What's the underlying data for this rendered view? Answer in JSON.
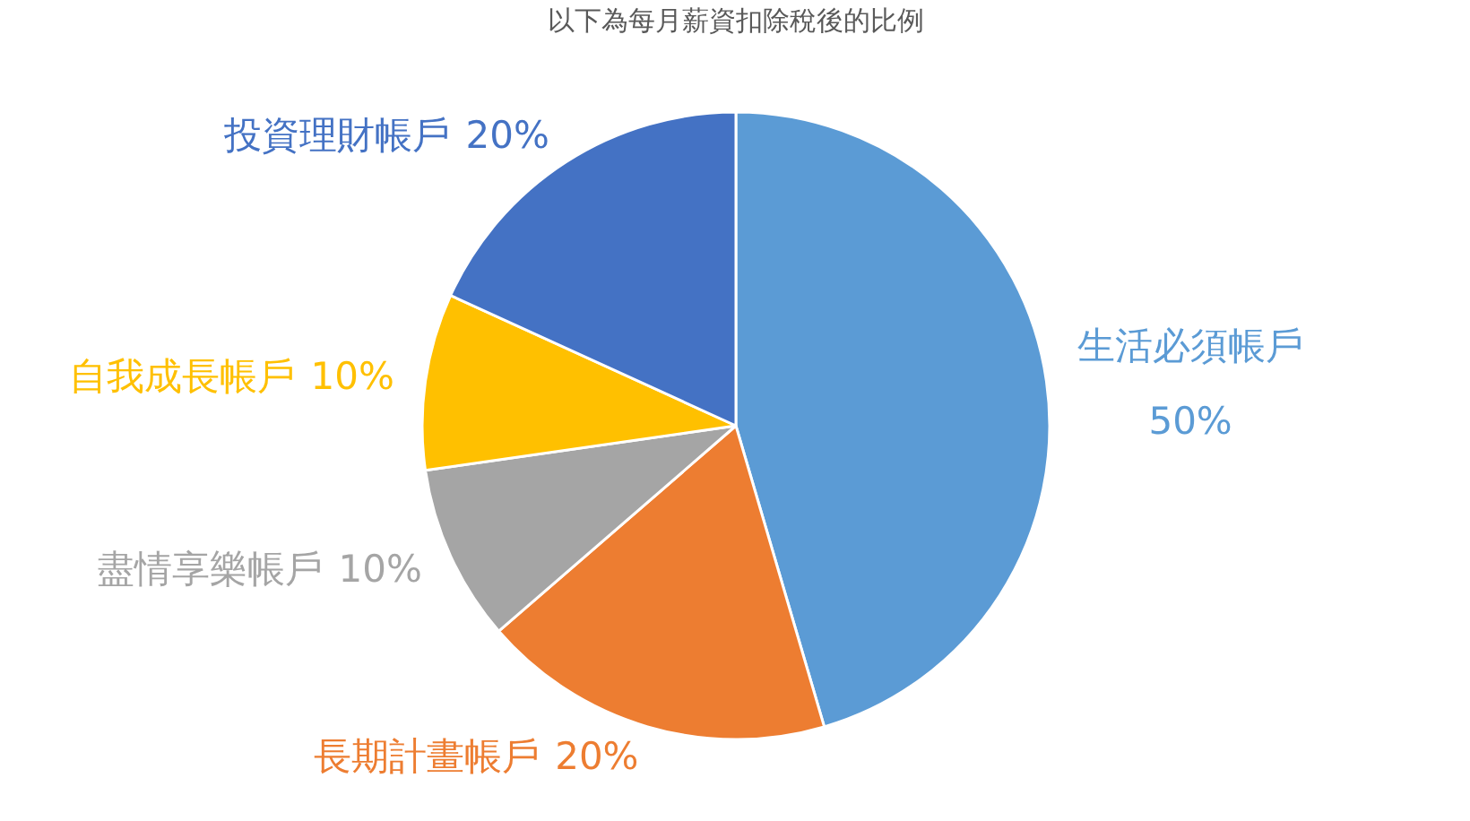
{
  "chart_data": {
    "type": "pie",
    "title": "以下為每月薪資扣除稅後的比例",
    "categories": [
      "生活必須帳戶",
      "長期計畫帳戶",
      "盡情享樂帳戶",
      "自我成長帳戶",
      "投資理財帳戶"
    ],
    "values": [
      50,
      20,
      10,
      10,
      20
    ],
    "value_labels": [
      "50%",
      "20%",
      "10%",
      "10%",
      "20%"
    ],
    "colors": [
      "#5b9bd5",
      "#ed7d31",
      "#a5a5a5",
      "#ffc000",
      "#4472c4"
    ]
  }
}
